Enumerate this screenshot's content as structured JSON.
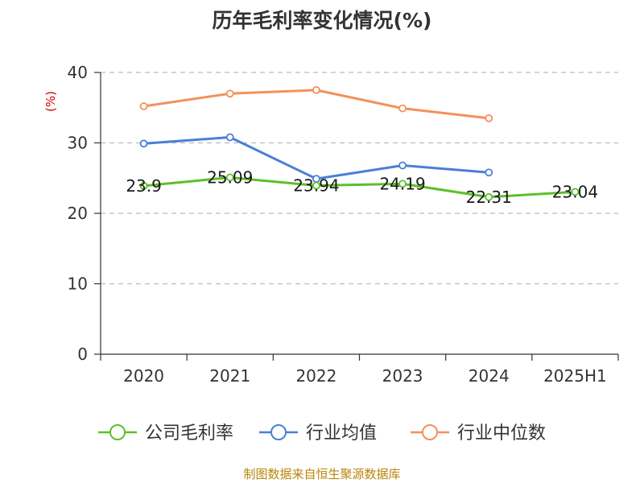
{
  "title": "历年毛利率变化情况(%)",
  "source": "制图数据来自恒生聚源数据库",
  "chart_data": {
    "type": "line",
    "title": "历年毛利率变化情况(%)",
    "ylabel": "(%)",
    "xlabel": "",
    "categories": [
      "2020",
      "2021",
      "2022",
      "2023",
      "2024",
      "2025H1"
    ],
    "ylim": [
      0,
      40
    ],
    "yticks": [
      0,
      10,
      20,
      30,
      40
    ],
    "grid": true,
    "legend_position": "bottom",
    "series": [
      {
        "name": "公司毛利率",
        "color": "#5dbf2a",
        "values": [
          23.9,
          25.09,
          23.94,
          24.19,
          22.31,
          23.04
        ],
        "labels": [
          "23.9",
          "25.09",
          "23.94",
          "24.19",
          "22.31",
          "23.04"
        ]
      },
      {
        "name": "行业均值",
        "color": "#4a7fd6",
        "values": [
          29.9,
          30.8,
          24.9,
          26.8,
          25.8,
          null
        ]
      },
      {
        "name": "行业中位数",
        "color": "#f5905a",
        "values": [
          35.2,
          37.0,
          37.5,
          34.9,
          33.5,
          null
        ]
      }
    ]
  }
}
